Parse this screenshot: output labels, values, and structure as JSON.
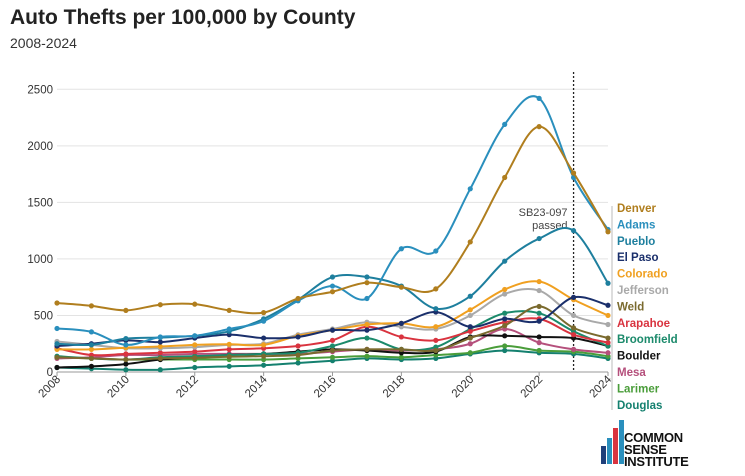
{
  "chart_data": {
    "type": "line",
    "title": "Auto Thefts per 100,000 by County",
    "subtitle": "2008-2024",
    "xlabel": "",
    "ylabel": "",
    "x": [
      2008,
      2009,
      2010,
      2011,
      2012,
      2013,
      2014,
      2015,
      2016,
      2017,
      2018,
      2019,
      2020,
      2021,
      2022,
      2023,
      2024
    ],
    "xticks": [
      "2008",
      "2010",
      "2012",
      "2014",
      "2016",
      "2018",
      "2020",
      "2022",
      "2024"
    ],
    "ylim": [
      0,
      2600
    ],
    "yticks": [
      "0",
      "500",
      "1000",
      "1500",
      "2000",
      "2500"
    ],
    "grid": true,
    "annotation": {
      "year": 2023,
      "line1": "SB23-097",
      "line2": "passed"
    },
    "series": [
      {
        "name": "Denver",
        "color": "#b07e1e",
        "values": [
          610,
          585,
          545,
          595,
          600,
          545,
          525,
          650,
          710,
          790,
          750,
          735,
          1150,
          1720,
          2170,
          1760,
          1240
        ]
      },
      {
        "name": "Adams",
        "color": "#2a8fbd",
        "values": [
          385,
          355,
          240,
          310,
          320,
          380,
          450,
          630,
          760,
          650,
          1090,
          1070,
          1620,
          2190,
          2420,
          1720,
          1260
        ]
      },
      {
        "name": "Pueblo",
        "color": "#1e7f9e",
        "values": [
          250,
          240,
          295,
          305,
          320,
          360,
          470,
          640,
          840,
          840,
          760,
          560,
          670,
          980,
          1180,
          1250,
          785
        ]
      },
      {
        "name": "El Paso",
        "color": "#1a2f6b",
        "values": [
          230,
          250,
          280,
          265,
          300,
          330,
          300,
          310,
          370,
          370,
          430,
          530,
          400,
          470,
          450,
          660,
          590
        ]
      },
      {
        "name": "Colorado",
        "color": "#f0a020",
        "values": [
          200,
          200,
          215,
          225,
          240,
          245,
          240,
          320,
          370,
          420,
          430,
          400,
          550,
          730,
          800,
          640,
          500
        ]
      },
      {
        "name": "Jefferson",
        "color": "#a9a9a9",
        "values": [
          270,
          240,
          210,
          210,
          220,
          240,
          250,
          330,
          380,
          440,
          400,
          380,
          500,
          690,
          720,
          500,
          420
        ]
      },
      {
        "name": "Weld",
        "color": "#7a6a2e",
        "values": [
          130,
          120,
          110,
          120,
          125,
          135,
          140,
          150,
          190,
          200,
          200,
          190,
          300,
          410,
          580,
          390,
          300
        ]
      },
      {
        "name": "Arapahoe",
        "color": "#d9333f",
        "values": [
          210,
          150,
          160,
          170,
          180,
          200,
          210,
          230,
          280,
          400,
          310,
          280,
          360,
          440,
          470,
          330,
          260
        ]
      },
      {
        "name": "Broomfield",
        "color": "#1b8a6b",
        "values": [
          140,
          120,
          110,
          130,
          140,
          150,
          160,
          170,
          230,
          300,
          200,
          220,
          380,
          520,
          520,
          360,
          230
        ]
      },
      {
        "name": "Boulder",
        "color": "#111111",
        "values": [
          40,
          50,
          70,
          110,
          130,
          150,
          160,
          180,
          200,
          190,
          170,
          180,
          310,
          320,
          310,
          300,
          230
        ]
      },
      {
        "name": "Mesa",
        "color": "#b5507c",
        "values": [
          120,
          130,
          150,
          150,
          160,
          160,
          160,
          160,
          180,
          200,
          190,
          200,
          250,
          380,
          260,
          200,
          170
        ]
      },
      {
        "name": "Larimer",
        "color": "#4a9d3a",
        "values": [
          130,
          120,
          110,
          110,
          110,
          110,
          110,
          120,
          130,
          140,
          130,
          150,
          170,
          230,
          190,
          180,
          140
        ]
      },
      {
        "name": "Douglas",
        "color": "#14806f",
        "values": [
          40,
          30,
          20,
          20,
          40,
          50,
          60,
          80,
          100,
          120,
          110,
          120,
          160,
          190,
          170,
          160,
          120
        ]
      }
    ],
    "legend_position": "right"
  },
  "logo": {
    "line1": "COMMON",
    "line2": "SENSE",
    "line3": "INSTITUTE"
  }
}
